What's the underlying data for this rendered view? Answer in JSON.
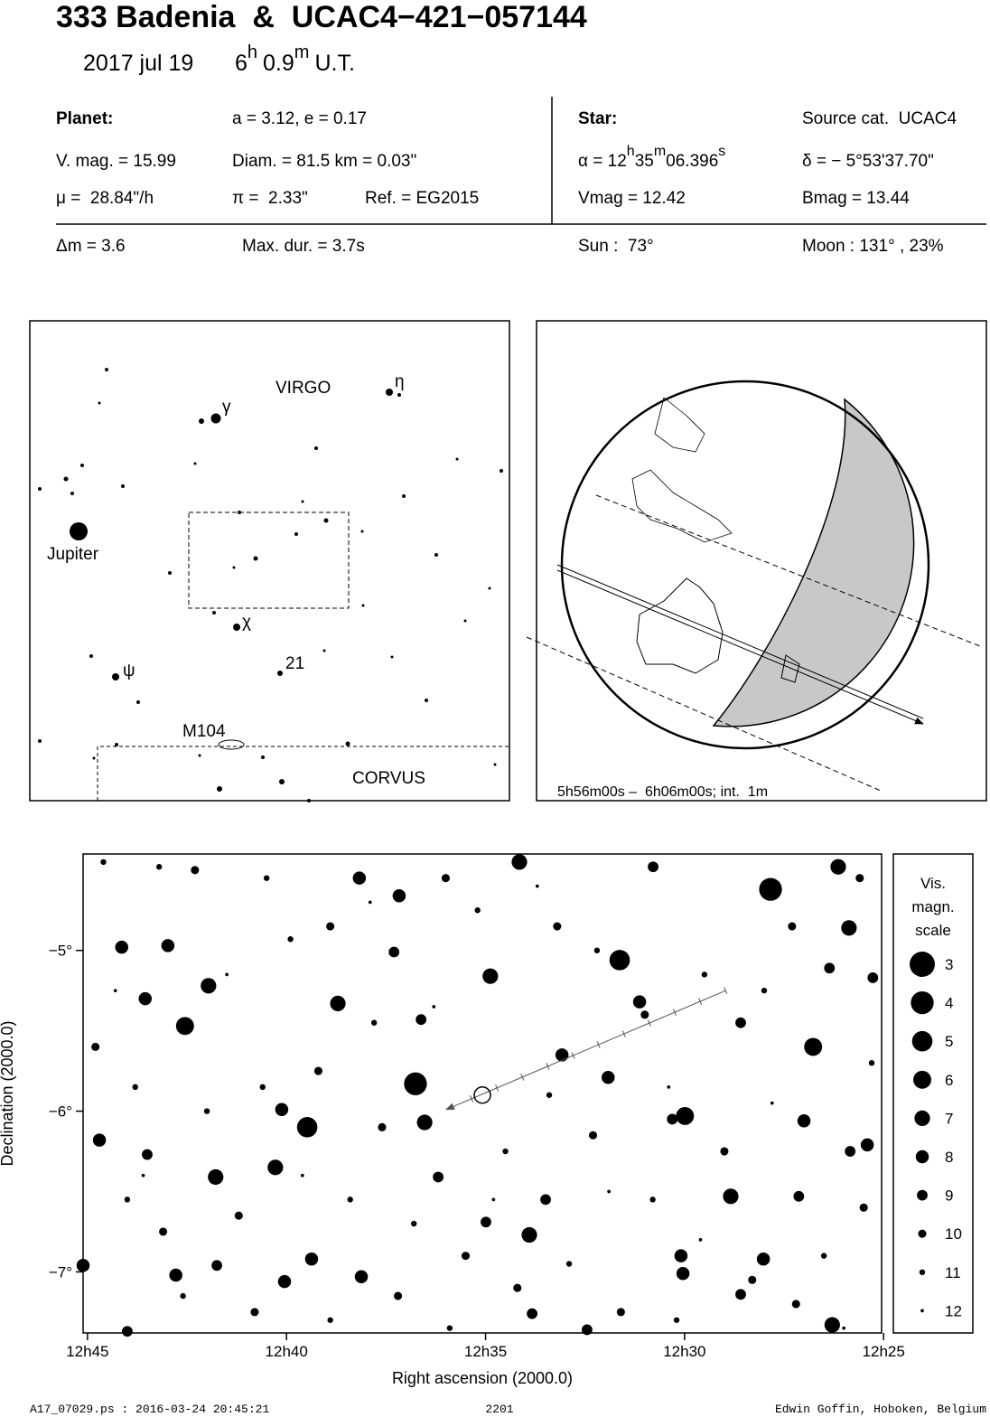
{
  "header": {
    "title": "333 Badenia  &  UCAC4−421−057144",
    "date": "2017 jul 19",
    "hours": 6,
    "h": "h",
    "minutes": 0.9,
    "m": "m",
    "ut": "U.T."
  },
  "info": {
    "planet": "Planet:",
    "orbit": "a = 3.12, e = 0.17",
    "vmag": "V. mag. = 15.99",
    "diam": "Diam. = 81.5 km = 0.03\"",
    "mu": "μ =  28.84\"/h",
    "parallax": "π =  2.33\"",
    "ref": "Ref. = EG2015",
    "star": "Star:",
    "source": "Source cat.  UCAC4",
    "alpha": [
      "α = 12",
      "h",
      "35",
      "m",
      "06.396",
      "s"
    ],
    "delta": "δ = − 5°53'37.70\"",
    "star_vmag": "Vmag = 12.42",
    "star_bmag": "Bmag = 13.44",
    "dm": "Δm = 3.6",
    "maxdur": "Max. dur. = 3.7s",
    "sun": "Sun :  73°",
    "moon": "Moon : 131° , 23%"
  },
  "finder": {
    "labels": [
      "VIRGO",
      "η",
      "γ",
      "Jupiter",
      "χ",
      "ψ",
      "21",
      "M104",
      "CORVUS"
    ]
  },
  "globe": {
    "caption": "5h56m00s –  6h06m00s; int.  1m"
  },
  "chart_data": {
    "type": "scatter",
    "x_label": "Right ascension (2000.0)",
    "y_label": "Declination (2000.0)",
    "xlim": [
      45.11,
      25.05
    ],
    "ylim": [
      -7.38,
      -4.4
    ],
    "xticks": [
      {
        "value": 45,
        "label": "12h45"
      },
      {
        "value": 40,
        "label": "12h40"
      },
      {
        "value": 35,
        "label": "12h35"
      },
      {
        "value": 30,
        "label": "12h30"
      },
      {
        "value": 25,
        "label": "12h25"
      }
    ],
    "yticks": [
      {
        "value": -5,
        "label": "−5°"
      },
      {
        "value": -6,
        "label": "−6°"
      },
      {
        "value": -7,
        "label": "−7°"
      }
    ],
    "stars": {
      "x": [
        27.84,
        31.63,
        36.76,
        39.48,
        26.77,
        29.99,
        42.55,
        41.96,
        34.88,
        26.14,
        25.87,
        38.71,
        40.28,
        41.78,
        36.53,
        28.84,
        33.9,
        26.29,
        34.15,
        31.92,
        40.12,
        44.7,
        30.09,
        28.02,
        33.08,
        42.98,
        44.14,
        37.17,
        38.17,
        45.11,
        43.55,
        31.13,
        41.75,
        39.37,
        40.05,
        38.12,
        30.04,
        27.0,
        27.13,
        25.41,
        25.84,
        26.36,
        25.27,
        44.0,
        33.83,
        36.62,
        37.3,
        30.31,
        42.78,
        43.5,
        34.99,
        36.19,
        33.49,
        28.59,
        30.79,
        28.59,
        32.45,
        44.6,
        43.2,
        42.3,
        40.5,
        39.9,
        38.9,
        37.8,
        36.0,
        35.2,
        33.2,
        32.2,
        31.0,
        29.5,
        28.0,
        27.3,
        25.6,
        25.3,
        25.5,
        26.5,
        27.2,
        29.0,
        30.8,
        32.3,
        33.4,
        34.5,
        35.5,
        36.8,
        37.6,
        38.4,
        39.2,
        40.6,
        41.2,
        42.0,
        43.1,
        44.0,
        44.8,
        43.8,
        42.6,
        40.8,
        38.9,
        37.2,
        35.9,
        34.2,
        32.9,
        31.6,
        30.2,
        28.3,
        26.0,
        27.8,
        30.4,
        36.3,
        41.5,
        44.3,
        33.7,
        37.9,
        31.9,
        29.6,
        34.8,
        39.6,
        43.6
      ],
      "y": [
        -4.62,
        -5.06,
        -5.83,
        -6.1,
        -5.6,
        -6.03,
        -5.47,
        -5.22,
        -5.16,
        -4.48,
        -4.86,
        -5.33,
        -6.35,
        -6.41,
        -6.07,
        -6.53,
        -6.77,
        -7.33,
        -4.45,
        -5.79,
        -5.99,
        -6.18,
        -6.9,
        -6.92,
        -5.65,
        -4.97,
        -4.98,
        -4.66,
        -4.55,
        -6.96,
        -5.3,
        -5.32,
        -6.96,
        -6.92,
        -7.06,
        -7.03,
        -7.01,
        -6.06,
        -6.53,
        -6.21,
        -6.25,
        -5.11,
        -5.17,
        -7.37,
        -7.26,
        -5.43,
        -5.01,
        -6.05,
        -7.02,
        -6.27,
        -6.69,
        -6.41,
        -6.55,
        -5.45,
        -4.48,
        -7.14,
        -7.36,
        -4.45,
        -4.48,
        -4.5,
        -4.55,
        -4.93,
        -4.85,
        -5.45,
        -4.55,
        -4.75,
        -4.85,
        -5.0,
        -5.4,
        -5.15,
        -5.25,
        -4.85,
        -4.55,
        -5.7,
        -6.6,
        -6.9,
        -7.2,
        -6.25,
        -6.55,
        -6.15,
        -5.9,
        -6.25,
        -6.9,
        -6.7,
        -6.1,
        -6.55,
        -5.75,
        -5.85,
        -6.65,
        -6.0,
        -6.75,
        -6.55,
        -5.6,
        -5.85,
        -7.15,
        -7.25,
        -7.3,
        -7.15,
        -7.35,
        -7.1,
        -6.95,
        -7.25,
        -7.3,
        -7.05,
        -7.35,
        -5.95,
        -5.85,
        -5.35,
        -5.15,
        -5.25,
        -4.6,
        -4.7,
        -6.5,
        -6.8,
        -6.55,
        -6.4,
        -6.4
      ],
      "magnitudes": [
        4,
        5,
        4,
        5,
        6,
        6,
        6,
        7,
        7,
        7,
        7,
        7,
        7,
        7,
        7,
        7,
        7,
        7,
        7,
        8,
        8,
        8,
        8,
        8,
        8,
        8,
        8,
        8,
        8,
        8,
        8,
        8,
        9,
        8,
        8,
        8,
        8,
        8,
        9,
        8,
        9,
        9,
        9,
        9,
        9,
        9,
        9,
        9,
        8,
        9,
        9,
        9,
        9,
        9,
        9,
        9,
        9,
        11,
        11,
        10,
        11,
        11,
        10,
        11,
        10,
        11,
        10,
        11,
        10,
        11,
        11,
        10,
        10,
        11,
        10,
        11,
        10,
        10,
        11,
        10,
        11,
        11,
        10,
        11,
        10,
        11,
        10,
        11,
        10,
        11,
        10,
        11,
        10,
        11,
        11,
        10,
        11,
        10,
        11,
        10,
        11,
        10,
        11,
        10,
        12,
        12,
        12,
        12,
        12,
        12,
        12,
        12,
        12,
        12,
        12,
        12,
        12
      ]
    },
    "track": {
      "x": [
        28.97,
        35.99
      ],
      "y": [
        -5.25,
        -5.99
      ]
    },
    "target": {
      "x": 35.08,
      "y": -5.9
    },
    "legend": {
      "title": [
        "Vis.",
        "magn.",
        "scale"
      ],
      "magnitudes": [
        3,
        4,
        5,
        6,
        7,
        8,
        9,
        10,
        11,
        12
      ]
    }
  },
  "footer": {
    "file": "A17_07029.ps : 2016-03-24 20:45:21",
    "number": "2201",
    "author": "Edwin Goffin, Hoboken, Belgium"
  }
}
